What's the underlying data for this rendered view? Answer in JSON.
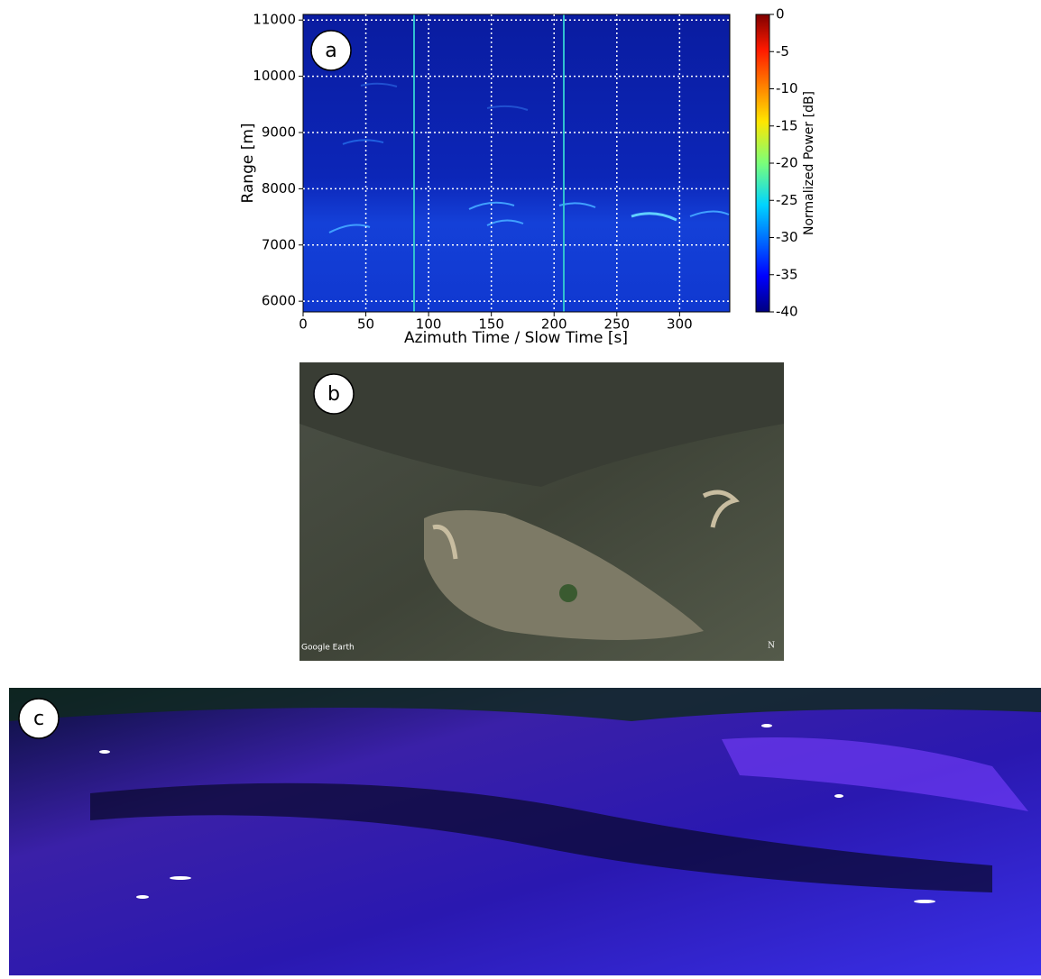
{
  "chart_data": {
    "type": "heatmap",
    "panel_label": "a",
    "x_label": "Azimuth Time / Slow Time [s]",
    "y_label": "Range [m]",
    "xlim": [
      0,
      340
    ],
    "xticks": [
      0,
      50,
      100,
      150,
      200,
      250,
      300
    ],
    "ylim": [
      5810,
      11100
    ],
    "yticks": [
      6000,
      7000,
      8000,
      9000,
      10000,
      11000
    ],
    "grid": true,
    "colorbar": {
      "label": "Normalized Power [dB]",
      "clim": [
        -40,
        0
      ],
      "ticks": [
        0,
        -5,
        -10,
        -15,
        -20,
        -25,
        -30,
        -35,
        -40
      ]
    }
  },
  "panel_b": {
    "label": "b",
    "watermark": "Google Earth",
    "north": "N"
  },
  "panel_c": {
    "label": "c"
  }
}
